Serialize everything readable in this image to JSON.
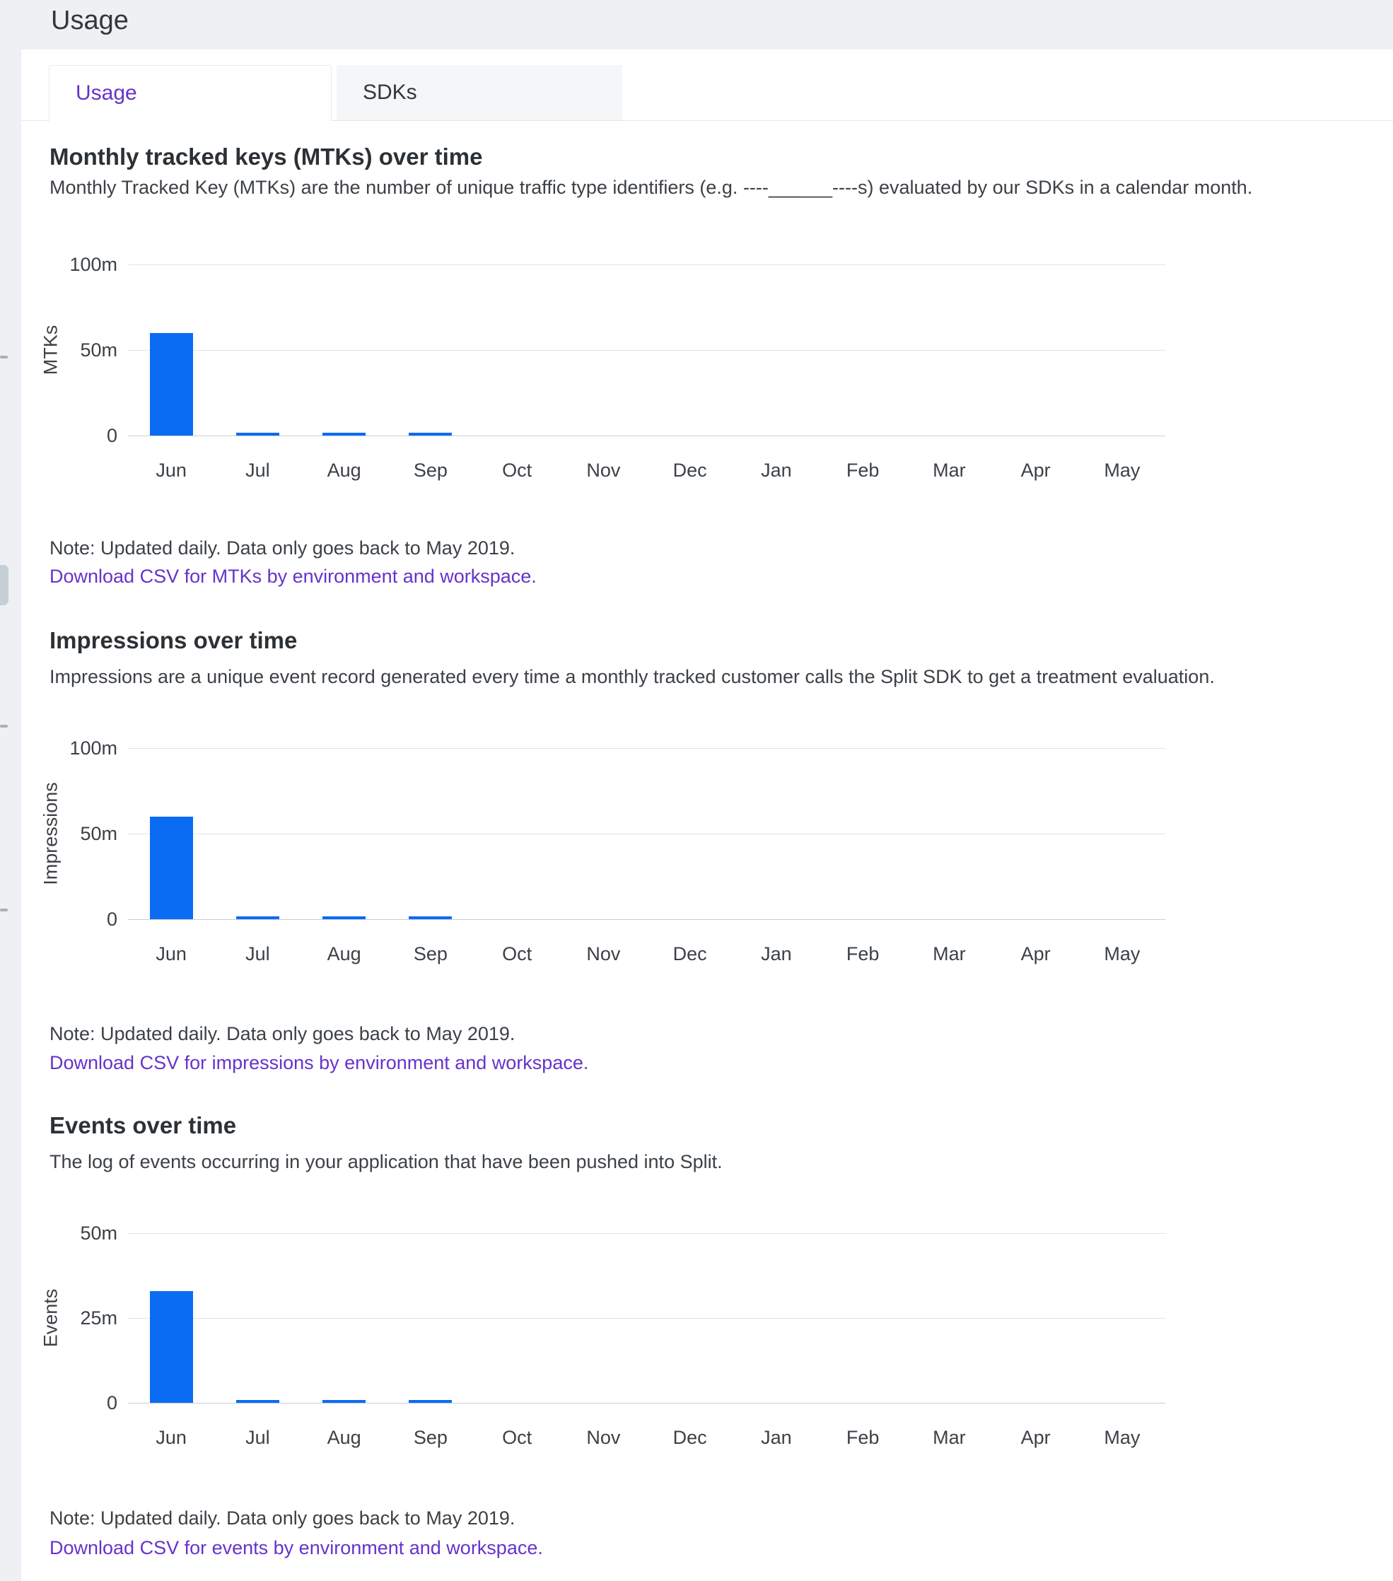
{
  "page": {
    "title": "Usage"
  },
  "tabs": [
    {
      "label": "Usage",
      "active": true
    },
    {
      "label": "SDKs",
      "active": false
    }
  ],
  "sections": [
    {
      "heading": "Monthly tracked keys (MTKs) over time",
      "description": "Monthly Tracked Key (MTKs) are the number of unique traffic type identifiers (e.g. ----______----s) evaluated by our SDKs in a calendar month.",
      "note": "Note: Updated daily. Data only goes back to May 2019.",
      "link": "Download CSV for MTKs by environment and workspace."
    },
    {
      "heading": "Impressions over time",
      "description": "Impressions are a unique event record generated every time a monthly tracked customer calls the Split SDK to get a treatment evaluation.",
      "note": "Note: Updated daily. Data only goes back to May 2019.",
      "link": "Download CSV for impressions by environment and workspace."
    },
    {
      "heading": "Events over time",
      "description": "The log of events occurring in your application that have been pushed into Split.",
      "note": "Note: Updated daily. Data only goes back to May 2019.",
      "link": "Download CSV for events by environment and workspace."
    }
  ],
  "chart_data": [
    {
      "type": "bar",
      "title": "Monthly tracked keys (MTKs) over time",
      "categories": [
        "Jun",
        "Jul",
        "Aug",
        "Sep",
        "Oct",
        "Nov",
        "Dec",
        "Jan",
        "Feb",
        "Mar",
        "Apr",
        "May"
      ],
      "values": [
        60,
        1,
        1,
        1,
        0,
        0,
        0,
        0,
        0,
        0,
        0,
        0
      ],
      "unit": "millions",
      "xlabel": "",
      "ylabel": "MTKs",
      "ylim": [
        0,
        100
      ],
      "yticks": [
        {
          "v": 0,
          "label": "0"
        },
        {
          "v": 50,
          "label": "50m"
        },
        {
          "v": 100,
          "label": "100m"
        }
      ],
      "grid": true,
      "legend": false,
      "bar_color": "#0a6cf3"
    },
    {
      "type": "bar",
      "title": "Impressions over time",
      "categories": [
        "Jun",
        "Jul",
        "Aug",
        "Sep",
        "Oct",
        "Nov",
        "Dec",
        "Jan",
        "Feb",
        "Mar",
        "Apr",
        "May"
      ],
      "values": [
        60,
        1,
        1,
        1,
        0,
        0,
        0,
        0,
        0,
        0,
        0,
        0
      ],
      "unit": "millions",
      "xlabel": "",
      "ylabel": "Impressions",
      "ylim": [
        0,
        100
      ],
      "yticks": [
        {
          "v": 0,
          "label": "0"
        },
        {
          "v": 50,
          "label": "50m"
        },
        {
          "v": 100,
          "label": "100m"
        }
      ],
      "grid": true,
      "legend": false,
      "bar_color": "#0a6cf3"
    },
    {
      "type": "bar",
      "title": "Events over time",
      "categories": [
        "Jun",
        "Jul",
        "Aug",
        "Sep",
        "Oct",
        "Nov",
        "Dec",
        "Jan",
        "Feb",
        "Mar",
        "Apr",
        "May"
      ],
      "values": [
        33,
        0.5,
        0.5,
        0.5,
        0,
        0,
        0,
        0,
        0,
        0,
        0,
        0
      ],
      "unit": "millions",
      "xlabel": "",
      "ylabel": "Events",
      "ylim": [
        0,
        50
      ],
      "yticks": [
        {
          "v": 0,
          "label": "0"
        },
        {
          "v": 25,
          "label": "25m"
        },
        {
          "v": 50,
          "label": "50m"
        }
      ],
      "grid": true,
      "legend": false,
      "bar_color": "#0a6cf3"
    }
  ],
  "colors": {
    "accent_purple": "#6633cc",
    "bar_blue": "#0a6cf3",
    "band_gray": "#eef0f4",
    "tab_inactive_bg": "#f5f6f8"
  }
}
